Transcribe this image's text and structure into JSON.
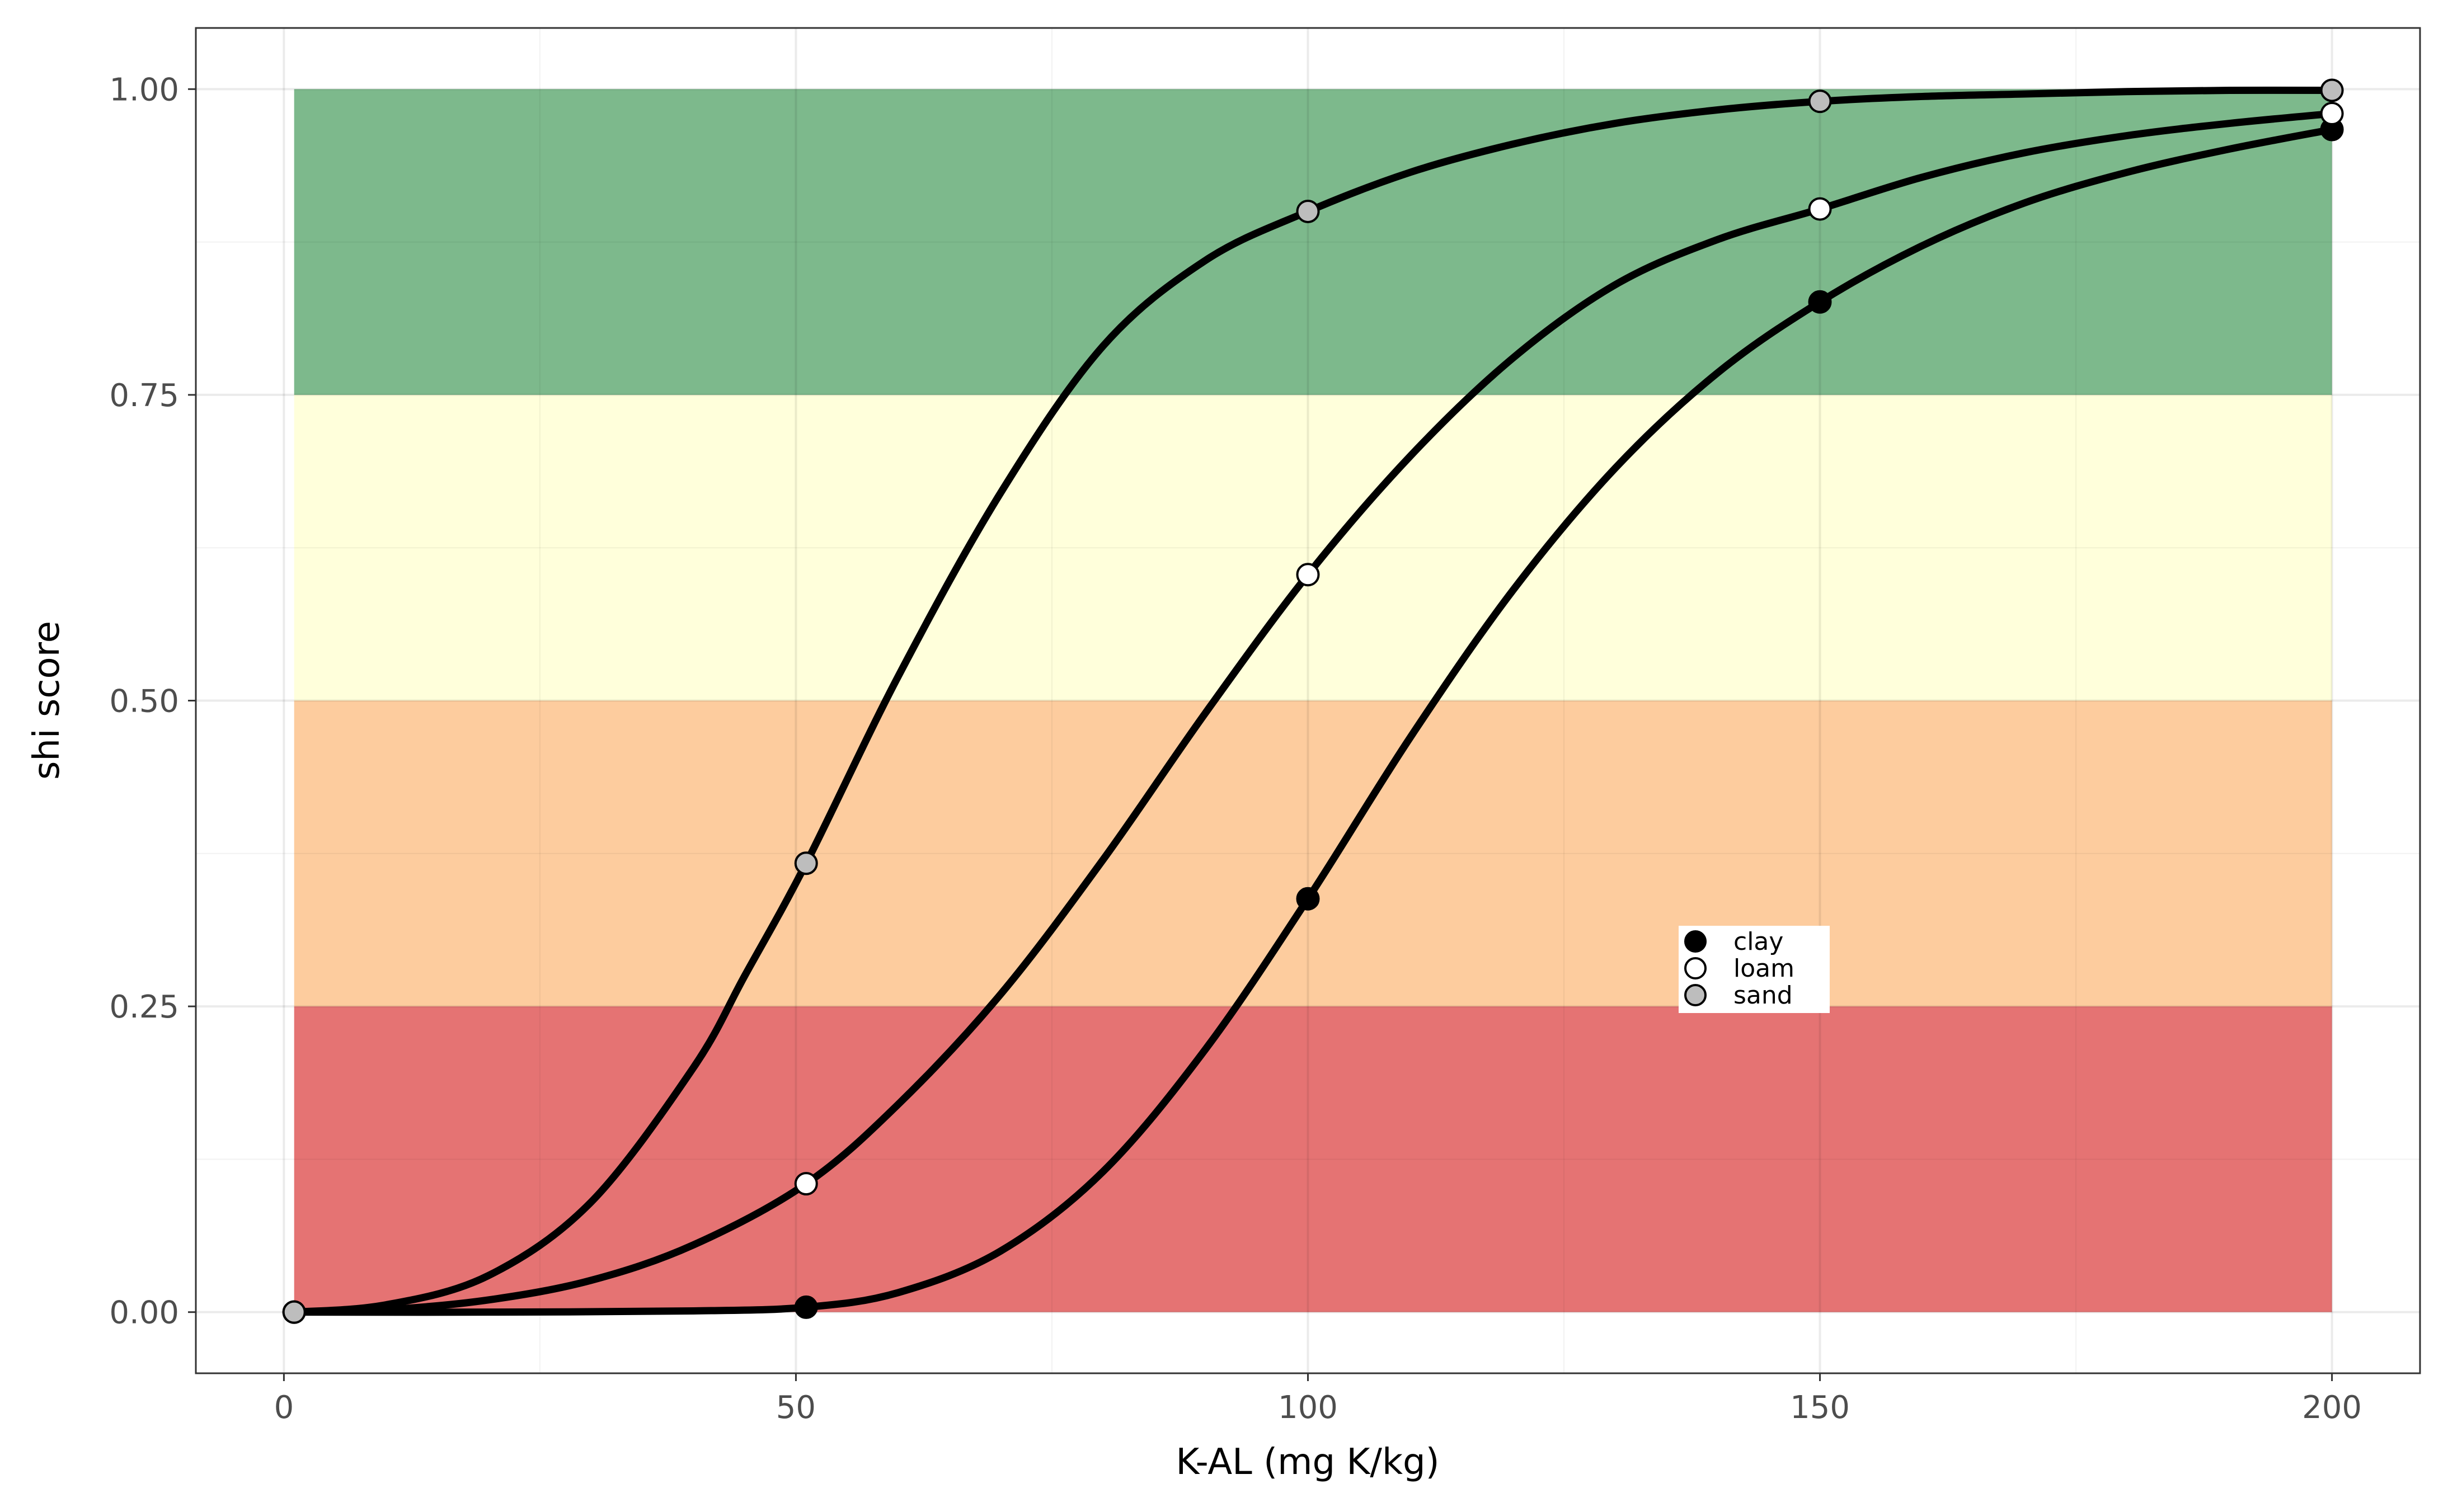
{
  "chart_data": {
    "type": "line",
    "title": "",
    "xlabel": "K-AL (mg K/kg)",
    "ylabel": "shi score",
    "xlim": [
      -8.6,
      208.6
    ],
    "ylim": [
      -0.05,
      1.05
    ],
    "x_ticks": [
      0,
      50,
      100,
      150,
      200
    ],
    "x_tick_labels": [
      "0",
      "50",
      "100",
      "150",
      "200"
    ],
    "y_ticks": [
      0,
      0.25,
      0.5,
      0.75,
      1
    ],
    "y_tick_labels": [
      "0.00",
      "0.25",
      "0.50",
      "0.75",
      "1.00"
    ],
    "grid": true,
    "bands": [
      {
        "ymin": 0.0,
        "ymax": 0.25,
        "xmin": 1,
        "xmax": 200,
        "color": "#e57373"
      },
      {
        "ymin": 0.25,
        "ymax": 0.5,
        "xmin": 1,
        "xmax": 200,
        "color": "#fdcc9e"
      },
      {
        "ymin": 0.5,
        "ymax": 0.75,
        "xmin": 1,
        "xmax": 200,
        "color": "#ffffdb"
      },
      {
        "ymin": 0.75,
        "ymax": 1.0,
        "xmin": 1,
        "xmax": 200,
        "color": "#7db98c"
      }
    ],
    "series": [
      {
        "name": "clay",
        "fill": "#000000",
        "x": [
          1,
          51,
          100,
          150,
          200
        ],
        "y": [
          0.0,
          0.004,
          0.338,
          0.826,
          0.967
        ]
      },
      {
        "name": "loam",
        "fill": "#ffffff",
        "x": [
          1,
          51,
          100,
          150,
          200
        ],
        "y": [
          0.0,
          0.105,
          0.603,
          0.902,
          0.98
        ]
      },
      {
        "name": "sand",
        "fill": "#bdbdbd",
        "x": [
          1,
          51,
          100,
          150,
          200
        ],
        "y": [
          0.0,
          0.367,
          0.9,
          0.99,
          0.999
        ]
      }
    ],
    "curves": [
      {
        "series": "clay",
        "x": [
          1,
          20,
          40,
          51,
          60,
          70,
          80,
          90,
          100,
          110,
          120,
          130,
          140,
          150,
          160,
          170,
          180,
          190,
          200
        ],
        "y": [
          0.0,
          0.0,
          0.001,
          0.004,
          0.016,
          0.05,
          0.115,
          0.215,
          0.338,
          0.47,
          0.59,
          0.69,
          0.768,
          0.826,
          0.872,
          0.907,
          0.932,
          0.951,
          0.967
        ]
      },
      {
        "series": "loam",
        "x": [
          1,
          10,
          20,
          30,
          40,
          51,
          60,
          70,
          80,
          90,
          100,
          110,
          120,
          130,
          140,
          150,
          160,
          170,
          180,
          190,
          200
        ],
        "y": [
          0.0,
          0.002,
          0.01,
          0.026,
          0.055,
          0.105,
          0.17,
          0.26,
          0.37,
          0.49,
          0.603,
          0.7,
          0.78,
          0.84,
          0.877,
          0.902,
          0.928,
          0.948,
          0.962,
          0.972,
          0.98
        ]
      },
      {
        "series": "sand",
        "x": [
          1,
          10,
          20,
          30,
          40,
          45,
          51,
          60,
          70,
          80,
          90,
          100,
          110,
          120,
          130,
          140,
          150,
          160,
          170,
          180,
          190,
          200
        ],
        "y": [
          0.0,
          0.006,
          0.03,
          0.09,
          0.2,
          0.275,
          0.367,
          0.52,
          0.67,
          0.79,
          0.86,
          0.9,
          0.932,
          0.955,
          0.972,
          0.983,
          0.99,
          0.994,
          0.996,
          0.998,
          0.999,
          0.999
        ]
      }
    ],
    "legend": {
      "position": "inside-center-right",
      "entries": [
        "clay",
        "loam",
        "sand"
      ]
    }
  }
}
